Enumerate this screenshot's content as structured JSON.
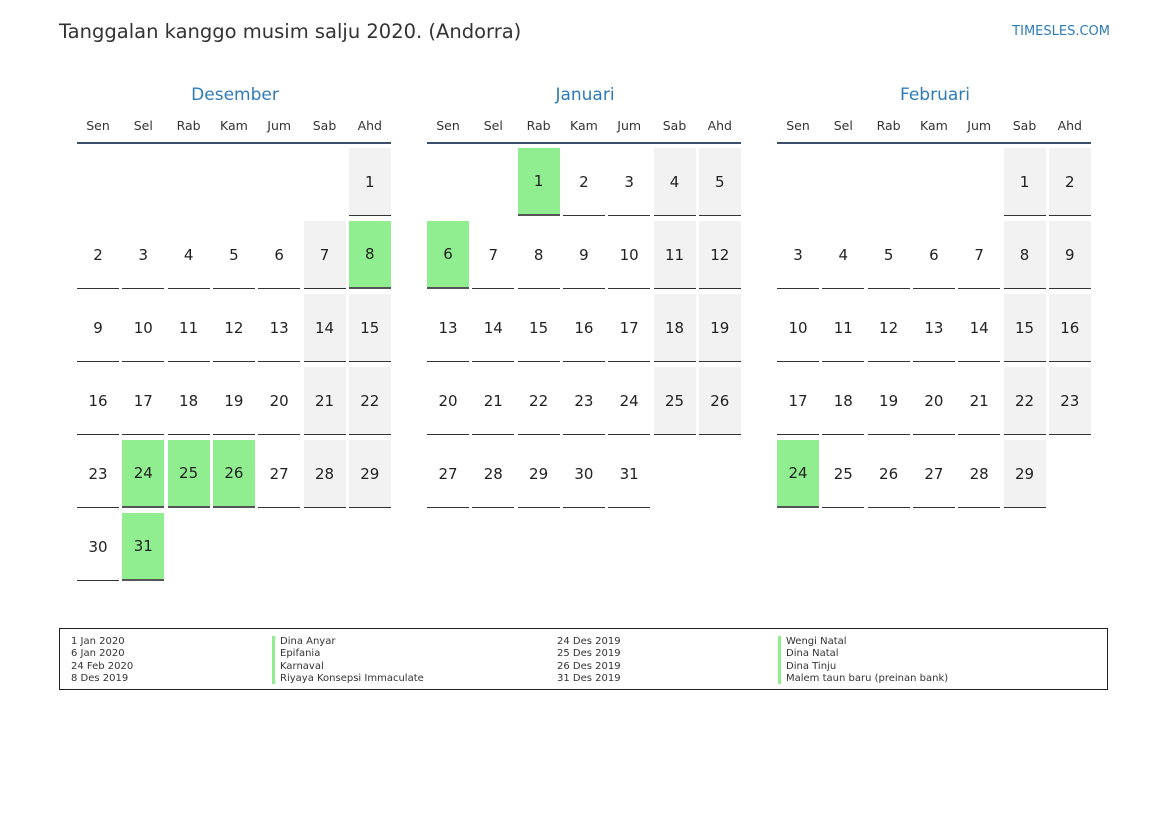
{
  "header": {
    "title": "Tanggalan kanggo musim salju 2020. (Andorra)",
    "site": "TIMESLES.COM"
  },
  "colors": {
    "accent": "#2e7bb8",
    "holiday": "#90ee90",
    "weekend": "#f2f2f2"
  },
  "weekdays": [
    "Sen",
    "Sel",
    "Rab",
    "Kam",
    "Jum",
    "Sab",
    "Ahd"
  ],
  "months": [
    {
      "name": "Desember",
      "start_weekday": 6,
      "days": 31,
      "holidays": [
        8,
        24,
        25,
        26,
        31
      ]
    },
    {
      "name": "Januari",
      "start_weekday": 2,
      "days": 31,
      "holidays": [
        1,
        6
      ]
    },
    {
      "name": "Februari",
      "start_weekday": 5,
      "days": 29,
      "holidays": [
        24
      ]
    }
  ],
  "legend": {
    "left": [
      {
        "date": "1 Jan 2020",
        "name": "Dina Anyar"
      },
      {
        "date": "6 Jan 2020",
        "name": "Epifania"
      },
      {
        "date": "24 Feb 2020",
        "name": "Karnaval"
      },
      {
        "date": "8 Des 2019",
        "name": "Riyaya Konsepsi Immaculate"
      }
    ],
    "right": [
      {
        "date": "24 Des 2019",
        "name": "Wengi Natal"
      },
      {
        "date": "25 Des 2019",
        "name": "Dina Natal"
      },
      {
        "date": "26 Des 2019",
        "name": "Dina Tinju"
      },
      {
        "date": "31 Des 2019",
        "name": "Malem taun baru (preinan bank)"
      }
    ]
  }
}
